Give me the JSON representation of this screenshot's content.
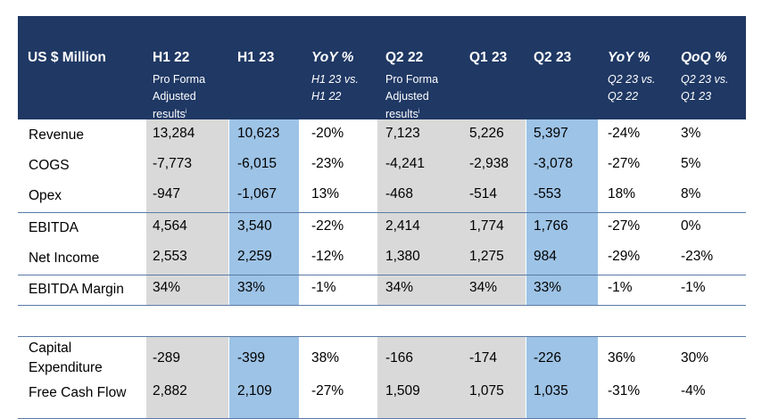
{
  "header": {
    "unit_label": "US $ Million",
    "columns": [
      {
        "title": "H1 22",
        "sub": "Pro Forma\nAdjusted\nresults",
        "sup": "i"
      },
      {
        "title": "H1 23",
        "sub": "",
        "sup": ""
      },
      {
        "title": "YoY %",
        "sub": "H1 23 vs.\nH1 22",
        "sup": ""
      },
      {
        "title": "Q2 22",
        "sub": "Pro Forma\nAdjusted\nresults",
        "sup": "i"
      },
      {
        "title": "Q1 23",
        "sub": "",
        "sup": ""
      },
      {
        "title": "Q2 23",
        "sub": "",
        "sup": ""
      },
      {
        "title": "YoY %",
        "sub": "Q2 23 vs.\nQ2 22",
        "sup": ""
      },
      {
        "title": "QoQ %",
        "sub": "Q2 23 vs.\nQ1 23",
        "sup": ""
      }
    ]
  },
  "rows": [
    {
      "label": "Revenue",
      "values": [
        "13,284",
        "10,623",
        "-20%",
        "7,123",
        "5,226",
        "5,397",
        "-24%",
        "3%"
      ]
    },
    {
      "label": "COGS",
      "values": [
        "-7,773",
        "-6,015",
        "-23%",
        "-4,241",
        "-2,938",
        "-3,078",
        "-27%",
        "5%"
      ]
    },
    {
      "label": "Opex",
      "values": [
        "-947",
        "-1,067",
        "13%",
        "-468",
        "-514",
        "-553",
        "18%",
        "8%"
      ]
    },
    {
      "label": "EBITDA",
      "values": [
        "4,564",
        "3,540",
        "-22%",
        "2,414",
        "1,774",
        "1,766",
        "-27%",
        "0%"
      ]
    },
    {
      "label": "Net Income",
      "values": [
        "2,553",
        "2,259",
        "-12%",
        "1,380",
        "1,275",
        "984",
        "-29%",
        "-23%"
      ]
    },
    {
      "label": "EBITDA Margin",
      "values": [
        "34%",
        "33%",
        "-1%",
        "34%",
        "34%",
        "33%",
        "-1%",
        "-1%"
      ]
    },
    {
      "label": "Capital\nExpenditure",
      "values": [
        "-289",
        "-399",
        "38%",
        "-166",
        "-174",
        "-226",
        "36%",
        "30%"
      ]
    },
    {
      "label": "Free Cash Flow",
      "values": [
        "2,882",
        "2,109",
        "-27%",
        "1,509",
        "1,075",
        "1,035",
        "-31%",
        "-4%"
      ]
    }
  ],
  "colors": {
    "header_bg": "#1f3864",
    "grey_band": "#d9d9d9",
    "blue_band": "#9dc3e6",
    "rule": "#5b7aa6"
  }
}
